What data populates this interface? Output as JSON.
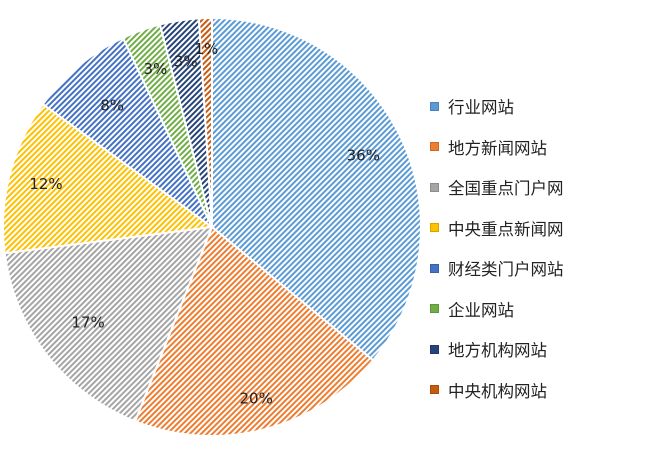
{
  "chart_data": {
    "type": "pie",
    "title": "",
    "categories": [
      "行业网站",
      "地方新闻网站",
      "全国重点门户网",
      "中央重点新闻网",
      "财经类门户网站",
      "企业网站",
      "地方机构网站",
      "中央机构网站"
    ],
    "values": [
      36,
      20,
      17,
      12,
      8,
      3,
      3,
      1
    ],
    "labels": [
      "36%",
      "20%",
      "17%",
      "12%",
      "8%",
      "3%",
      "3%",
      "1%"
    ],
    "colors": [
      "#5b9bd5",
      "#ed7d31",
      "#a5a5a5",
      "#ffc000",
      "#4472c4",
      "#70ad47",
      "#264478",
      "#c55a11"
    ],
    "legend_position": "right",
    "grid": false
  }
}
